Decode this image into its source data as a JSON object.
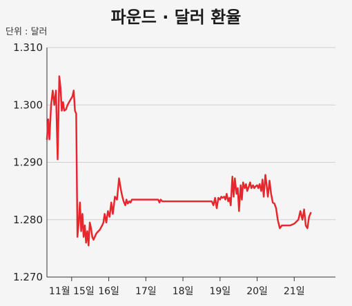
{
  "chart_data": {
    "type": "line",
    "title": "파운드 · 달러 환율",
    "unit_label": "단위 : 달러",
    "ylim": [
      1.27,
      1.31
    ],
    "yticks": [
      "1.270",
      "1.280",
      "1.290",
      "1.300",
      "1.310"
    ],
    "ytick_values": [
      1.27,
      1.28,
      1.29,
      1.3,
      1.31
    ],
    "xlim": [
      0,
      70
    ],
    "xticks": [
      {
        "label": "11월 15일",
        "x": 6
      },
      {
        "label": "16일",
        "x": 15
      },
      {
        "label": "17일",
        "x": 24
      },
      {
        "label": "18일",
        "x": 33
      },
      {
        "label": "19일",
        "x": 42
      },
      {
        "label": "20일",
        "x": 51
      },
      {
        "label": "21일",
        "x": 60
      }
    ],
    "grid": true,
    "colors": {
      "line": "#e8262d",
      "background": "#f5f5f5"
    },
    "series": [
      {
        "x": [
          0,
          0.3,
          0.6,
          1.0,
          1.4,
          1.8,
          2.2,
          2.6,
          3.0,
          3.3,
          3.6,
          3.9,
          4.2,
          4.6,
          5.0,
          5.4,
          5.8,
          6.2,
          6.5,
          6.8,
          7.1,
          7.4,
          7.7,
          8.0,
          8.3,
          8.6,
          8.9,
          9.2,
          9.5,
          9.8,
          10.1,
          10.4,
          10.7,
          11.0,
          11.3,
          11.6,
          11.9,
          12.2,
          12.5,
          12.8,
          13.1,
          13.4,
          13.7,
          14.0,
          14.4,
          14.8,
          15.2,
          15.6,
          16.0,
          16.5,
          17.0,
          17.5,
          18.0,
          18.3,
          18.6,
          19.0,
          19.3,
          19.6,
          20.0,
          20.3,
          20.6,
          21.0,
          21.3,
          21.6,
          22.0,
          22.5,
          23.0,
          24.0,
          25.0,
          26.0,
          27.0,
          27.3,
          27.6,
          28.0,
          29.0,
          30.0,
          31.0,
          32.0,
          33.0,
          34.0,
          35.0,
          36.0,
          37.0,
          38.0,
          39.0,
          40.0,
          40.4,
          40.8,
          41.2,
          41.6,
          42.0,
          42.3,
          42.6,
          43.0,
          43.3,
          43.6,
          44.0,
          44.3,
          44.6,
          45.0,
          45.3,
          45.6,
          46.0,
          46.3,
          46.6,
          47.0,
          47.3,
          47.6,
          48.0,
          48.3,
          48.6,
          49.0,
          49.3,
          49.6,
          50.0,
          50.3,
          50.6,
          51.0,
          51.3,
          51.6,
          52.0,
          52.3,
          52.6,
          53.0,
          53.3,
          53.6,
          54.0,
          54.4,
          54.8,
          55.2,
          55.6,
          56.0,
          56.5,
          57.0,
          58.0,
          59.0,
          60.0,
          61.0,
          61.5,
          62.0,
          62.4,
          62.8,
          63.2,
          63.6,
          64.0
        ],
        "values": [
          1.294,
          1.2975,
          1.294,
          1.3,
          1.3025,
          1.3,
          1.3025,
          1.2905,
          1.305,
          1.303,
          1.299,
          1.3005,
          1.299,
          1.2992,
          1.3,
          1.3005,
          1.301,
          1.3015,
          1.3025,
          1.299,
          1.2985,
          1.277,
          1.2795,
          1.283,
          1.278,
          1.281,
          1.277,
          1.279,
          1.276,
          1.278,
          1.2755,
          1.2795,
          1.2785,
          1.277,
          1.2765,
          1.277,
          1.2775,
          1.2778,
          1.278,
          1.2782,
          1.2786,
          1.279,
          1.2795,
          1.281,
          1.2795,
          1.2815,
          1.2805,
          1.283,
          1.281,
          1.284,
          1.2835,
          1.2872,
          1.285,
          1.284,
          1.2832,
          1.2825,
          1.2835,
          1.2828,
          1.2832,
          1.283,
          1.2835,
          1.2835,
          1.2835,
          1.2835,
          1.2835,
          1.2835,
          1.2835,
          1.2835,
          1.2835,
          1.2835,
          1.2835,
          1.283,
          1.2835,
          1.2832,
          1.2832,
          1.2832,
          1.2832,
          1.2832,
          1.2832,
          1.2832,
          1.2832,
          1.2832,
          1.2832,
          1.2832,
          1.2832,
          1.2832,
          1.2825,
          1.2838,
          1.282,
          1.2838,
          1.2835,
          1.284,
          1.2838,
          1.284,
          1.2835,
          1.2845,
          1.2832,
          1.2838,
          1.2825,
          1.2875,
          1.284,
          1.2872,
          1.2845,
          1.2855,
          1.2815,
          1.286,
          1.2835,
          1.2865,
          1.2855,
          1.2862,
          1.285,
          1.2858,
          1.2865,
          1.2855,
          1.286,
          1.2855,
          1.2858,
          1.286,
          1.2855,
          1.2862,
          1.285,
          1.287,
          1.284,
          1.2878,
          1.286,
          1.284,
          1.2868,
          1.2845,
          1.283,
          1.2828,
          1.282,
          1.28,
          1.2785,
          1.279,
          1.279,
          1.279,
          1.2793,
          1.28,
          1.2815,
          1.28,
          1.2818,
          1.279,
          1.2785,
          1.2805,
          1.2812
        ]
      }
    ]
  }
}
